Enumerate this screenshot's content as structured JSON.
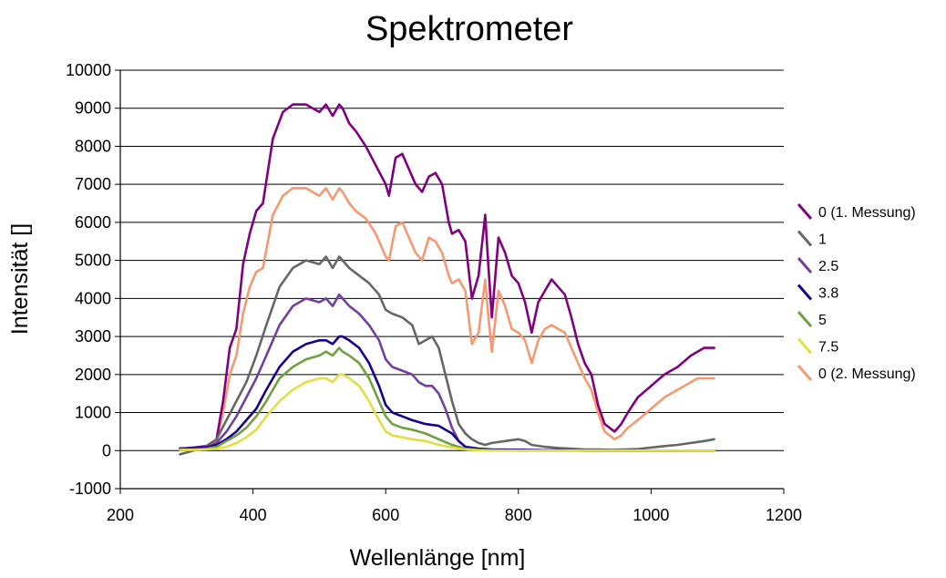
{
  "chart_data": {
    "type": "line",
    "title": "Spektrometer",
    "xlabel": "Wellenlänge [nm]",
    "ylabel": "Intensität []",
    "xlim": [
      200,
      1200
    ],
    "ylim": [
      -1000,
      10000
    ],
    "xticks": [
      "200",
      "400",
      "600",
      "800",
      "1000",
      "1200"
    ],
    "yticks": [
      "-1000",
      "0",
      "1000",
      "2000",
      "3000",
      "4000",
      "5000",
      "6000",
      "7000",
      "8000",
      "9000",
      "10000"
    ],
    "grid": "horizontal",
    "legend_position": "right",
    "series": [
      {
        "name": "0 (1. Messung)",
        "color": "#800080",
        "x": [
          290,
          310,
          330,
          345,
          355,
          365,
          375,
          385,
          395,
          405,
          415,
          430,
          445,
          460,
          480,
          500,
          510,
          520,
          530,
          535,
          545,
          555,
          570,
          585,
          600,
          605,
          615,
          625,
          635,
          645,
          655,
          665,
          675,
          685,
          695,
          700,
          710,
          720,
          730,
          740,
          750,
          755,
          760,
          770,
          780,
          790,
          800,
          810,
          820,
          830,
          840,
          850,
          860,
          870,
          880,
          890,
          900,
          910,
          920,
          930,
          945,
          955,
          965,
          980,
          1000,
          1020,
          1040,
          1060,
          1070,
          1080,
          1095
        ],
        "y": [
          50,
          80,
          120,
          300,
          1300,
          2700,
          3200,
          4900,
          5700,
          6300,
          6500,
          8200,
          8900,
          9100,
          9100,
          8900,
          9100,
          8800,
          9100,
          9000,
          8600,
          8400,
          8000,
          7500,
          7000,
          6700,
          7700,
          7800,
          7400,
          7000,
          6800,
          7200,
          7300,
          7000,
          6000,
          5700,
          5800,
          5500,
          4000,
          4600,
          6200,
          4800,
          3500,
          5600,
          5200,
          4600,
          4400,
          3900,
          3100,
          3900,
          4200,
          4500,
          4300,
          4100,
          3500,
          2800,
          2300,
          2000,
          1200,
          700,
          500,
          700,
          1000,
          1400,
          1700,
          2000,
          2200,
          2500,
          2600,
          2700,
          2700
        ]
      },
      {
        "name": "1",
        "color": "#666666",
        "x": [
          290,
          310,
          330,
          345,
          360,
          375,
          390,
          405,
          420,
          440,
          460,
          480,
          500,
          510,
          520,
          530,
          535,
          545,
          560,
          575,
          590,
          600,
          610,
          625,
          640,
          650,
          660,
          670,
          680,
          690,
          700,
          710,
          720,
          730,
          740,
          750,
          760,
          780,
          800,
          810,
          820,
          840,
          860,
          880,
          900,
          920,
          940,
          960,
          980,
          1000,
          1020,
          1040,
          1060,
          1080,
          1095
        ],
        "y": [
          -100,
          0,
          100,
          300,
          800,
          1300,
          1800,
          2500,
          3300,
          4300,
          4800,
          5000,
          4900,
          5100,
          4800,
          5100,
          5000,
          4800,
          4600,
          4400,
          4100,
          3700,
          3600,
          3500,
          3300,
          2800,
          2900,
          3000,
          2700,
          2000,
          1300,
          700,
          450,
          300,
          200,
          150,
          200,
          250,
          300,
          250,
          150,
          100,
          70,
          50,
          30,
          30,
          20,
          30,
          40,
          80,
          120,
          150,
          200,
          250,
          300
        ]
      },
      {
        "name": "2.5",
        "color": "#7040A0",
        "x": [
          290,
          310,
          330,
          345,
          360,
          375,
          390,
          405,
          420,
          440,
          460,
          480,
          500,
          510,
          520,
          530,
          535,
          545,
          560,
          575,
          590,
          600,
          610,
          625,
          640,
          650,
          660,
          670,
          680,
          690,
          700,
          710,
          720,
          740,
          760,
          800,
          850,
          900,
          950,
          1000,
          1050,
          1095
        ],
        "y": [
          50,
          60,
          80,
          200,
          500,
          900,
          1400,
          1900,
          2500,
          3300,
          3800,
          4000,
          3900,
          4000,
          3800,
          4100,
          4000,
          3800,
          3600,
          3300,
          2900,
          2400,
          2200,
          2100,
          2000,
          1800,
          1700,
          1700,
          1500,
          1100,
          600,
          250,
          100,
          50,
          30,
          20,
          10,
          0,
          0,
          0,
          0,
          0
        ]
      },
      {
        "name": "3.8",
        "color": "#1A0090",
        "x": [
          290,
          310,
          330,
          345,
          360,
          375,
          390,
          405,
          420,
          440,
          460,
          480,
          500,
          510,
          520,
          530,
          535,
          545,
          560,
          575,
          590,
          600,
          610,
          625,
          640,
          660,
          680,
          700,
          710,
          720,
          740,
          760,
          800,
          850,
          900,
          950,
          1000,
          1050,
          1095
        ],
        "y": [
          60,
          60,
          80,
          150,
          300,
          500,
          800,
          1100,
          1600,
          2200,
          2600,
          2800,
          2900,
          2900,
          2800,
          3000,
          3000,
          2900,
          2700,
          2300,
          1700,
          1200,
          1000,
          900,
          800,
          700,
          650,
          450,
          250,
          100,
          50,
          30,
          20,
          10,
          0,
          0,
          0,
          0,
          0
        ]
      },
      {
        "name": "5",
        "color": "#70A040",
        "x": [
          290,
          310,
          330,
          345,
          360,
          375,
          390,
          405,
          420,
          440,
          460,
          480,
          500,
          510,
          520,
          530,
          535,
          545,
          560,
          575,
          590,
          600,
          610,
          625,
          640,
          660,
          680,
          700,
          720,
          740,
          760,
          800,
          850,
          900,
          950,
          1000,
          1050,
          1095
        ],
        "y": [
          30,
          30,
          50,
          100,
          250,
          400,
          600,
          900,
          1300,
          1900,
          2200,
          2400,
          2500,
          2600,
          2500,
          2700,
          2600,
          2500,
          2300,
          1900,
          1300,
          900,
          700,
          600,
          550,
          450,
          300,
          150,
          50,
          20,
          10,
          0,
          0,
          0,
          0,
          0,
          0,
          0
        ]
      },
      {
        "name": "7.5",
        "color": "#E0E040",
        "x": [
          290,
          310,
          330,
          345,
          360,
          375,
          390,
          405,
          420,
          440,
          460,
          480,
          500,
          510,
          520,
          530,
          535,
          545,
          560,
          575,
          590,
          600,
          610,
          625,
          640,
          660,
          680,
          700,
          720,
          740,
          760,
          800,
          850,
          900,
          950,
          1000,
          1050,
          1095
        ],
        "y": [
          20,
          20,
          30,
          50,
          100,
          200,
          350,
          550,
          900,
          1300,
          1600,
          1800,
          1900,
          1900,
          1800,
          2000,
          2000,
          1900,
          1700,
          1300,
          800,
          500,
          400,
          350,
          300,
          250,
          150,
          80,
          30,
          10,
          0,
          0,
          0,
          0,
          0,
          0,
          0,
          0
        ]
      },
      {
        "name": "0 (2. Messung)",
        "color": "#F89870",
        "x": [
          290,
          310,
          330,
          345,
          355,
          365,
          375,
          385,
          395,
          405,
          415,
          430,
          445,
          460,
          480,
          500,
          510,
          520,
          530,
          535,
          545,
          555,
          570,
          585,
          600,
          605,
          615,
          625,
          635,
          645,
          655,
          665,
          675,
          685,
          695,
          700,
          710,
          720,
          730,
          740,
          750,
          755,
          760,
          770,
          780,
          790,
          800,
          810,
          820,
          830,
          840,
          850,
          860,
          870,
          880,
          890,
          900,
          910,
          920,
          930,
          945,
          955,
          965,
          980,
          1000,
          1020,
          1040,
          1060,
          1070,
          1080,
          1095
        ],
        "y": [
          40,
          60,
          100,
          250,
          1000,
          2000,
          2500,
          3600,
          4300,
          4700,
          4800,
          6200,
          6700,
          6900,
          6900,
          6700,
          6900,
          6600,
          6900,
          6800,
          6500,
          6300,
          6100,
          5700,
          5100,
          5000,
          5900,
          6000,
          5600,
          5200,
          5000,
          5600,
          5500,
          5200,
          4600,
          4400,
          4500,
          4200,
          2800,
          3100,
          4500,
          3500,
          2600,
          4200,
          3800,
          3200,
          3100,
          2900,
          2300,
          2900,
          3200,
          3300,
          3200,
          3100,
          2700,
          2300,
          1900,
          1600,
          1000,
          500,
          300,
          400,
          600,
          800,
          1100,
          1400,
          1600,
          1800,
          1900,
          1900,
          1900
        ]
      }
    ]
  }
}
